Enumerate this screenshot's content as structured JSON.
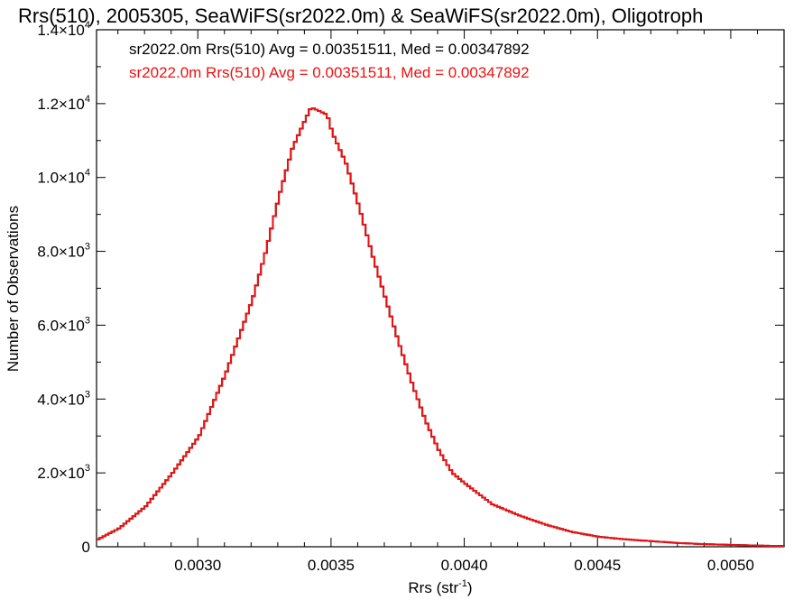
{
  "chart_data": {
    "type": "line",
    "title": "Rrs(510), 2005305, SeaWiFS(sr2022.0m) & SeaWiFS(sr2022.0m), Oligotroph",
    "xlabel": "Rrs (str",
    "xlabel_sup": "-1",
    "xlabel_end": ")",
    "ylabel": "Number of Observations",
    "xlim": [
      0.00262,
      0.0052
    ],
    "ylim": [
      0,
      14000
    ],
    "x_ticks": [
      {
        "value": 0.003,
        "label": "0.0030"
      },
      {
        "value": 0.0035,
        "label": "0.0035"
      },
      {
        "value": 0.004,
        "label": "0.0040"
      },
      {
        "value": 0.0045,
        "label": "0.0045"
      },
      {
        "value": 0.005,
        "label": "0.0050"
      }
    ],
    "y_ticks": [
      {
        "value": 0,
        "mant": "0",
        "exp": ""
      },
      {
        "value": 2000,
        "mant": "2.0×10",
        "exp": "3"
      },
      {
        "value": 4000,
        "mant": "4.0×10",
        "exp": "3"
      },
      {
        "value": 6000,
        "mant": "6.0×10",
        "exp": "3"
      },
      {
        "value": 8000,
        "mant": "8.0×10",
        "exp": "3"
      },
      {
        "value": 10000,
        "mant": "1.0×10",
        "exp": "4"
      },
      {
        "value": 12000,
        "mant": "1.2×10",
        "exp": "4"
      },
      {
        "value": 14000,
        "mant": "1.4×10",
        "exp": "4"
      }
    ],
    "legend": [
      {
        "text": "sr2022.0m Rrs(510) Avg = 0.00351511, Med = 0.00347892",
        "color": "#000000"
      },
      {
        "text": "sr2022.0m Rrs(510) Avg = 0.00351511, Med = 0.00347892",
        "color": "#ee1111"
      }
    ],
    "series": [
      {
        "color": "#000000",
        "x": [
          0.00262,
          0.0027,
          0.0028,
          0.0029,
          0.003,
          0.0031,
          0.0032,
          0.00325,
          0.0033,
          0.00335,
          0.0034,
          0.00342,
          0.00345,
          0.00348,
          0.0035,
          0.00355,
          0.0036,
          0.00365,
          0.0037,
          0.00375,
          0.0038,
          0.00385,
          0.0039,
          0.00395,
          0.004,
          0.0041,
          0.0042,
          0.0043,
          0.0044,
          0.0045,
          0.0046,
          0.0047,
          0.0048,
          0.0049,
          0.005,
          0.0051,
          0.0052
        ],
        "y": [
          200,
          500,
          1100,
          2000,
          3000,
          4700,
          6700,
          8000,
          9500,
          10800,
          11600,
          11900,
          11800,
          11700,
          11200,
          10400,
          9200,
          7900,
          6700,
          5500,
          4400,
          3400,
          2600,
          2000,
          1700,
          1150,
          850,
          600,
          400,
          270,
          200,
          150,
          100,
          70,
          50,
          30,
          20
        ]
      },
      {
        "color": "#ee1111",
        "x": [
          0.00262,
          0.0027,
          0.0028,
          0.0029,
          0.003,
          0.0031,
          0.0032,
          0.00325,
          0.0033,
          0.00335,
          0.0034,
          0.00342,
          0.00345,
          0.00348,
          0.0035,
          0.00355,
          0.0036,
          0.00365,
          0.0037,
          0.00375,
          0.0038,
          0.00385,
          0.0039,
          0.00395,
          0.004,
          0.0041,
          0.0042,
          0.0043,
          0.0044,
          0.0045,
          0.0046,
          0.0047,
          0.0048,
          0.0049,
          0.005,
          0.0051,
          0.0052
        ],
        "y": [
          200,
          500,
          1100,
          2000,
          3000,
          4700,
          6700,
          8000,
          9500,
          10800,
          11600,
          11900,
          11800,
          11700,
          11200,
          10400,
          9200,
          7900,
          6700,
          5500,
          4400,
          3400,
          2600,
          2000,
          1700,
          1150,
          850,
          600,
          400,
          270,
          200,
          150,
          100,
          70,
          50,
          30,
          20
        ]
      }
    ],
    "grid": false,
    "legend_position": "top-left"
  }
}
